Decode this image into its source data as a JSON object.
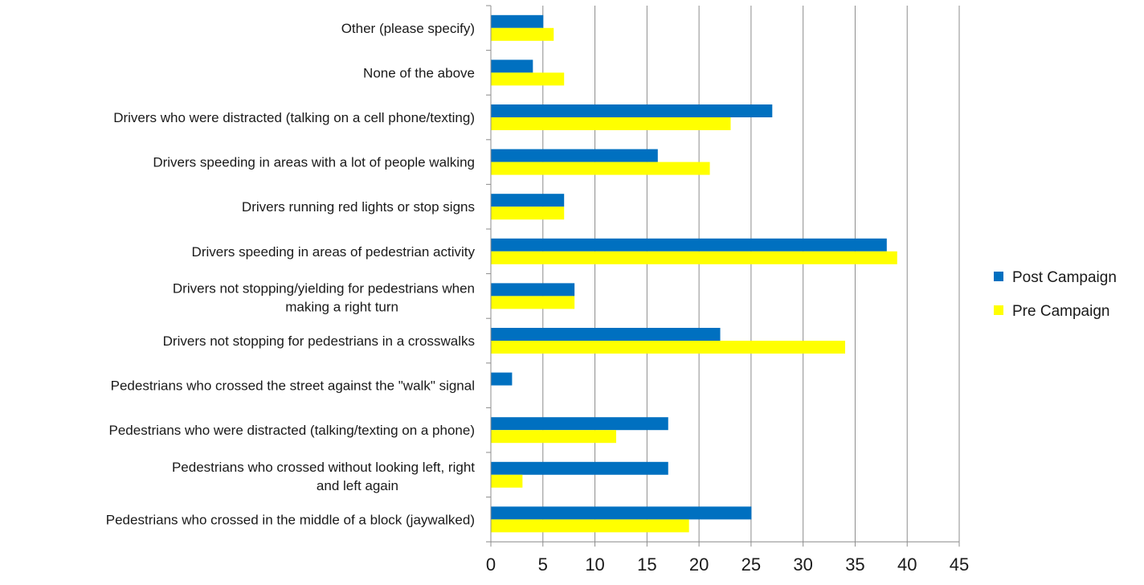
{
  "chart_data": {
    "type": "bar",
    "orientation": "horizontal",
    "title": "",
    "xlabel": "",
    "ylabel": "",
    "xlim": [
      0,
      45
    ],
    "x_ticks": [
      0,
      5,
      10,
      15,
      20,
      25,
      30,
      35,
      40,
      45
    ],
    "grid": "vertical",
    "legend_position": "right",
    "categories": [
      "Other (please specify)",
      "None of the above",
      "Drivers who were distracted (talking on a cell phone/texting)",
      "Drivers speeding in areas with a lot of people walking",
      "Drivers running red lights or stop signs",
      "Drivers speeding in areas of pedestrian activity",
      "Drivers not stopping/yielding for pedestrians when making a right turn",
      "Drivers not stopping for pedestrians in a crosswalks",
      "Pedestrians who crossed the street against the \"walk\" signal",
      "Pedestrians who were distracted (talking/texting on a phone)",
      "Pedestrians who crossed without looking left, right and left again",
      "Pedestrians who crossed in the middle of a block (jaywalked)"
    ],
    "series": [
      {
        "name": "Post Campaign",
        "color": "#0070C0",
        "values": [
          5,
          4,
          27,
          16,
          7,
          38,
          8,
          22,
          2,
          17,
          17,
          25
        ]
      },
      {
        "name": "Pre Campaign",
        "color": "#FFFF00",
        "values": [
          6,
          7,
          23,
          21,
          7,
          39,
          8,
          34,
          0,
          12,
          3,
          19
        ]
      }
    ]
  }
}
